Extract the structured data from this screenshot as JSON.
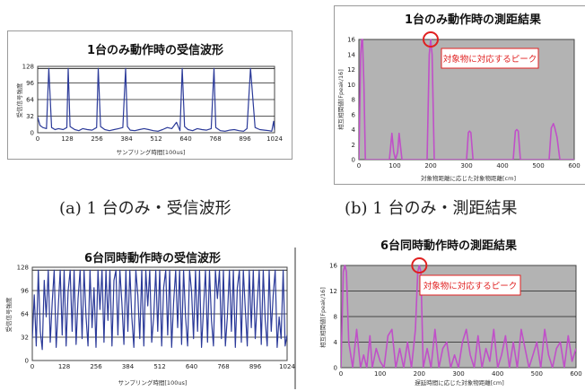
{
  "captions": {
    "a": "(a) 1 台のみ・受信波形",
    "b": "(b) 1 台のみ・測距結果"
  },
  "colors": {
    "waveform": "#2b3a99",
    "result": "#c050c8",
    "plot_gray": "#b3b3b3",
    "annotation": "#e02020"
  },
  "chart_data": [
    {
      "id": "a",
      "type": "line",
      "title": "1台のみ動作時の受信波形",
      "xlabel": "サンプリング時間[100us]",
      "ylabel": "受信信号強度",
      "xlim": [
        0,
        1024
      ],
      "ylim": [
        0,
        128
      ],
      "xticks": [
        "0",
        "128",
        "256",
        "384",
        "512",
        "640",
        "768",
        "896",
        "1024"
      ],
      "yticks": [
        "128",
        "96",
        "64",
        "32",
        "0"
      ],
      "grid": "horizontal",
      "background": "white",
      "series": [
        {
          "x": [
            0,
            10,
            22,
            38,
            48,
            60,
            75,
            90,
            110,
            126,
            132,
            140,
            160,
            178,
            195,
            215,
            235,
            255,
            262,
            272,
            290,
            310,
            330,
            350,
            368,
            380,
            388,
            400,
            420,
            440,
            460,
            480,
            500,
            520,
            540,
            560,
            580,
            600,
            615,
            625,
            635,
            650,
            670,
            690,
            710,
            730,
            750,
            762,
            770,
            790,
            810,
            830,
            850,
            870,
            890,
            905,
            920,
            940,
            960,
            980,
            1000,
            1012,
            1020,
            1024
          ],
          "y": [
            30,
            14,
            10,
            8,
            124,
            10,
            6,
            8,
            6,
            10,
            124,
            12,
            6,
            4,
            8,
            6,
            5,
            10,
            124,
            12,
            6,
            4,
            6,
            8,
            10,
            124,
            12,
            5,
            4,
            6,
            8,
            6,
            4,
            3,
            6,
            10,
            8,
            20,
            4,
            124,
            12,
            6,
            4,
            8,
            6,
            5,
            8,
            124,
            10,
            4,
            3,
            5,
            6,
            4,
            3,
            8,
            124,
            10,
            6,
            5,
            4,
            3,
            22,
            5
          ]
        }
      ]
    },
    {
      "id": "b",
      "type": "line",
      "title": "1台のみ動作時の測距結果",
      "xlabel": "対象物距離に応じた対象物距離[cm]",
      "ylabel": "相互相関値[Fpeak/16]",
      "xlim": [
        0,
        600
      ],
      "ylim": [
        0,
        16
      ],
      "xticks": [
        "0",
        "100",
        "200",
        "300",
        "400",
        "500",
        "600"
      ],
      "yticks": [
        "16",
        "14",
        "12",
        "10",
        "8",
        "6",
        "4",
        "2",
        "0"
      ],
      "grid": "none",
      "background": "gray",
      "annotation": "対象物に対応するピーク",
      "peak": {
        "x": 200,
        "y": 16
      },
      "series": [
        {
          "x": [
            0,
            5,
            8,
            10,
            14,
            18,
            25,
            85,
            92,
            97,
            102,
            108,
            112,
            120,
            190,
            196,
            200,
            204,
            210,
            300,
            305,
            308,
            312,
            318,
            430,
            436,
            440,
            444,
            450,
            530,
            536,
            542,
            546,
            552,
            560,
            600
          ],
          "y": [
            0,
            14,
            16,
            16,
            10,
            0,
            0,
            0,
            3.5,
            1,
            0,
            1,
            3.5,
            0,
            0,
            14,
            16,
            14,
            0,
            0,
            3.6,
            3.8,
            3.6,
            0,
            0,
            3.8,
            4,
            3.8,
            0,
            0,
            4.2,
            4.8,
            4.2,
            3,
            0,
            0
          ]
        }
      ]
    },
    {
      "id": "c",
      "type": "line",
      "title": "6台同時動作時の受信波形",
      "xlabel": "サンプリング時間[100us]",
      "ylabel": "受信信号強度",
      "xlim": [
        0,
        1024
      ],
      "ylim": [
        0,
        128
      ],
      "xticks": [
        "0",
        "128",
        "256",
        "384",
        "512",
        "640",
        "768",
        "896",
        "1024"
      ],
      "yticks": [
        "128",
        "96",
        "64",
        "32",
        "0"
      ],
      "grid": "horizontal",
      "background": "white",
      "series": [
        {
          "x": [
            0,
            8,
            16,
            24,
            32,
            40,
            48,
            56,
            64,
            72,
            80,
            88,
            96,
            104,
            112,
            120,
            128,
            136,
            144,
            152,
            160,
            168,
            176,
            184,
            192,
            200,
            208,
            216,
            224,
            232,
            240,
            248,
            256,
            264,
            272,
            280,
            288,
            296,
            304,
            312,
            320,
            328,
            336,
            344,
            352,
            360,
            368,
            376,
            384,
            392,
            400,
            408,
            416,
            424,
            432,
            440,
            448,
            456,
            464,
            472,
            480,
            488,
            496,
            504,
            512,
            520,
            528,
            536,
            544,
            552,
            560,
            568,
            576,
            584,
            592,
            600,
            608,
            616,
            624,
            632,
            640,
            648,
            656,
            664,
            672,
            680,
            688,
            696,
            704,
            712,
            720,
            728,
            736,
            744,
            752,
            760,
            768,
            776,
            784,
            792,
            800,
            808,
            816,
            824,
            832,
            840,
            848,
            856,
            864,
            872,
            880,
            888,
            896,
            904,
            912,
            920,
            928,
            936,
            944,
            952,
            960,
            968,
            976,
            984,
            992,
            1000,
            1008,
            1016,
            1024
          ],
          "y": [
            30,
            90,
            20,
            124,
            40,
            15,
            110,
            60,
            124,
            25,
            80,
            124,
            18,
            70,
            124,
            35,
            124,
            20,
            95,
            124,
            40,
            124,
            22,
            85,
            124,
            30,
            124,
            60,
            20,
            124,
            45,
            100,
            18,
            124,
            70,
            124,
            25,
            124,
            55,
            124,
            20,
            110,
            124,
            35,
            124,
            80,
            22,
            124,
            40,
            124,
            60,
            18,
            124,
            90,
            30,
            124,
            20,
            124,
            75,
            124,
            25,
            60,
            124,
            40,
            124,
            20,
            100,
            124,
            35,
            124,
            18,
            80,
            124,
            45,
            124,
            22,
            124,
            60,
            20,
            124,
            95,
            30,
            124,
            40,
            124,
            18,
            70,
            124,
            25,
            124,
            55,
            20,
            124,
            85,
            124,
            30,
            124,
            20,
            60,
            124,
            40,
            124,
            18,
            100,
            124,
            25,
            124,
            70,
            20,
            124,
            45,
            124,
            30,
            80,
            124,
            22,
            124,
            55,
            20,
            124,
            40,
            90,
            124,
            18,
            60,
            30,
            124,
            20,
            35
          ]
        }
      ]
    },
    {
      "id": "d",
      "type": "line",
      "title": "6台同時動作時の測距結果",
      "xlabel": "遅延時間に応じた対象物距離[cm]",
      "ylabel": "相互相関値[Fpeak/16]",
      "xlim": [
        0,
        600
      ],
      "ylim": [
        0,
        16
      ],
      "xticks": [
        "0",
        "100",
        "200",
        "300",
        "400",
        "500",
        "600"
      ],
      "yticks": [
        "16",
        "12",
        "8",
        "4",
        "0"
      ],
      "grid": "horizontal",
      "background": "gray",
      "annotation": "対象物に対応するピーク",
      "peak": {
        "x": 200,
        "y": 16
      },
      "series": [
        {
          "x": [
            0,
            6,
            10,
            14,
            20,
            30,
            40,
            50,
            58,
            66,
            74,
            80,
            90,
            100,
            110,
            120,
            130,
            140,
            150,
            160,
            170,
            180,
            190,
            196,
            200,
            204,
            210,
            220,
            230,
            240,
            250,
            260,
            270,
            280,
            290,
            300,
            310,
            320,
            330,
            340,
            350,
            360,
            370,
            380,
            390,
            400,
            410,
            420,
            430,
            440,
            450,
            460,
            470,
            480,
            490,
            500,
            510,
            520,
            530,
            540,
            550,
            560,
            570,
            580,
            590,
            600
          ],
          "y": [
            0,
            15,
            16,
            15,
            4,
            0,
            6,
            0,
            2,
            0,
            5,
            0,
            3,
            1,
            0,
            5,
            6,
            0,
            3,
            0,
            4,
            0,
            6,
            15,
            16,
            15,
            0,
            3,
            0,
            6,
            0,
            3,
            4,
            0,
            2,
            0,
            4,
            6,
            2,
            0,
            5,
            0,
            3,
            1,
            6,
            0,
            2,
            5,
            0,
            4,
            0,
            6,
            3,
            0,
            2,
            4,
            0,
            6,
            2,
            0,
            3,
            4,
            0,
            5,
            1,
            3
          ]
        }
      ]
    }
  ]
}
